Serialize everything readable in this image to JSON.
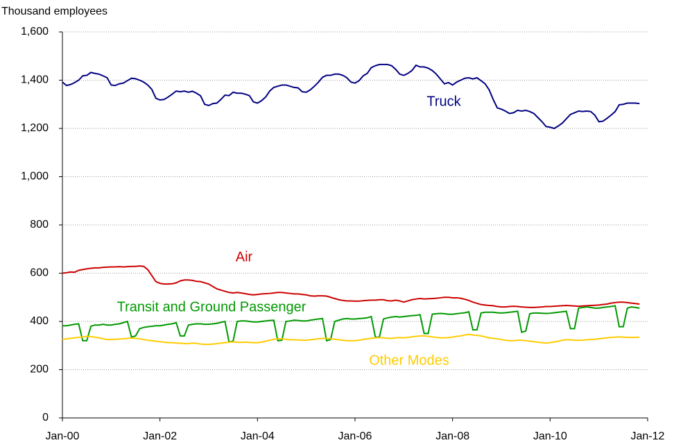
{
  "chart_data": {
    "type": "line",
    "y_axis_label": "Thousand employees",
    "x": [
      "2000-01",
      "2000-02",
      "2000-03",
      "2000-04",
      "2000-05",
      "2000-06",
      "2000-07",
      "2000-08",
      "2000-09",
      "2000-10",
      "2000-11",
      "2000-12",
      "2001-01",
      "2001-02",
      "2001-03",
      "2001-04",
      "2001-05",
      "2001-06",
      "2001-07",
      "2001-08",
      "2001-09",
      "2001-10",
      "2001-11",
      "2001-12",
      "2002-01",
      "2002-02",
      "2002-03",
      "2002-04",
      "2002-05",
      "2002-06",
      "2002-07",
      "2002-08",
      "2002-09",
      "2002-10",
      "2002-11",
      "2002-12",
      "2003-01",
      "2003-02",
      "2003-03",
      "2003-04",
      "2003-05",
      "2003-06",
      "2003-07",
      "2003-08",
      "2003-09",
      "2003-10",
      "2003-11",
      "2003-12",
      "2004-01",
      "2004-02",
      "2004-03",
      "2004-04",
      "2004-05",
      "2004-06",
      "2004-07",
      "2004-08",
      "2004-09",
      "2004-10",
      "2004-11",
      "2004-12",
      "2005-01",
      "2005-02",
      "2005-03",
      "2005-04",
      "2005-05",
      "2005-06",
      "2005-07",
      "2005-08",
      "2005-09",
      "2005-10",
      "2005-11",
      "2005-12",
      "2006-01",
      "2006-02",
      "2006-03",
      "2006-04",
      "2006-05",
      "2006-06",
      "2006-07",
      "2006-08",
      "2006-09",
      "2006-10",
      "2006-11",
      "2006-12",
      "2007-01",
      "2007-02",
      "2007-03",
      "2007-04",
      "2007-05",
      "2007-06",
      "2007-07",
      "2007-08",
      "2007-09",
      "2007-10",
      "2007-11",
      "2007-12",
      "2008-01",
      "2008-02",
      "2008-03",
      "2008-04",
      "2008-05",
      "2008-06",
      "2008-07",
      "2008-08",
      "2008-09",
      "2008-10",
      "2008-11",
      "2008-12",
      "2009-01",
      "2009-02",
      "2009-03",
      "2009-04",
      "2009-05",
      "2009-06",
      "2009-07",
      "2009-08",
      "2009-09",
      "2009-10",
      "2009-11",
      "2009-12",
      "2010-01",
      "2010-02",
      "2010-03",
      "2010-04",
      "2010-05",
      "2010-06",
      "2010-07",
      "2010-08",
      "2010-09",
      "2010-10",
      "2010-11",
      "2010-12",
      "2011-01",
      "2011-02",
      "2011-03",
      "2011-04",
      "2011-05",
      "2011-06",
      "2011-07",
      "2011-08",
      "2011-09",
      "2011-10",
      "2011-11"
    ],
    "series": [
      {
        "name": "Truck",
        "color": "#000080",
        "values": [
          1392,
          1378,
          1382,
          1390,
          1400,
          1418,
          1420,
          1432,
          1428,
          1425,
          1418,
          1410,
          1380,
          1378,
          1385,
          1388,
          1398,
          1408,
          1406,
          1400,
          1392,
          1380,
          1362,
          1325,
          1318,
          1320,
          1330,
          1342,
          1355,
          1352,
          1355,
          1350,
          1354,
          1346,
          1335,
          1300,
          1295,
          1303,
          1305,
          1320,
          1338,
          1336,
          1350,
          1346,
          1346,
          1342,
          1336,
          1310,
          1305,
          1315,
          1330,
          1355,
          1370,
          1375,
          1380,
          1380,
          1375,
          1370,
          1368,
          1352,
          1350,
          1360,
          1375,
          1392,
          1412,
          1420,
          1420,
          1425,
          1425,
          1420,
          1410,
          1392,
          1388,
          1398,
          1418,
          1428,
          1452,
          1460,
          1465,
          1465,
          1465,
          1460,
          1445,
          1425,
          1420,
          1428,
          1440,
          1462,
          1455,
          1455,
          1450,
          1440,
          1425,
          1405,
          1385,
          1390,
          1380,
          1392,
          1400,
          1408,
          1410,
          1405,
          1410,
          1398,
          1385,
          1360,
          1320,
          1285,
          1280,
          1272,
          1262,
          1265,
          1275,
          1272,
          1275,
          1270,
          1262,
          1245,
          1228,
          1208,
          1205,
          1200,
          1210,
          1222,
          1240,
          1258,
          1265,
          1272,
          1270,
          1272,
          1270,
          1255,
          1228,
          1230,
          1242,
          1255,
          1270,
          1298,
          1300,
          1305,
          1305,
          1305,
          1303
        ]
      },
      {
        "name": "Air",
        "color": "#cc0000",
        "values": [
          600,
          602,
          605,
          604,
          612,
          615,
          618,
          620,
          622,
          622,
          624,
          625,
          626,
          626,
          627,
          626,
          627,
          628,
          628,
          630,
          628,
          615,
          590,
          565,
          558,
          555,
          555,
          556,
          560,
          568,
          572,
          572,
          570,
          566,
          565,
          560,
          555,
          545,
          535,
          530,
          525,
          520,
          518,
          520,
          518,
          515,
          512,
          510,
          512,
          514,
          515,
          516,
          518,
          520,
          520,
          518,
          516,
          514,
          514,
          512,
          510,
          506,
          505,
          506,
          506,
          505,
          500,
          495,
          490,
          487,
          485,
          485,
          484,
          484,
          486,
          487,
          488,
          488,
          490,
          490,
          486,
          485,
          488,
          485,
          480,
          485,
          490,
          493,
          495,
          493,
          494,
          495,
          496,
          498,
          500,
          500,
          498,
          498,
          496,
          492,
          487,
          480,
          475,
          470,
          468,
          466,
          465,
          462,
          460,
          460,
          462,
          463,
          462,
          460,
          459,
          458,
          458,
          459,
          460,
          462,
          462,
          463,
          464,
          465,
          466,
          465,
          464,
          463,
          464,
          465,
          466,
          467,
          468,
          470,
          472,
          476,
          478,
          480,
          480,
          478,
          476,
          474,
          472
        ]
      },
      {
        "name": "Transit and Ground Passenger",
        "color": "#009900",
        "values": [
          382,
          382,
          385,
          388,
          390,
          320,
          320,
          380,
          385,
          385,
          388,
          385,
          385,
          388,
          390,
          395,
          400,
          335,
          340,
          370,
          375,
          378,
          380,
          382,
          382,
          385,
          388,
          390,
          395,
          340,
          340,
          385,
          388,
          390,
          390,
          388,
          388,
          390,
          392,
          396,
          400,
          315,
          318,
          400,
          402,
          402,
          400,
          398,
          398,
          400,
          402,
          404,
          405,
          320,
          322,
          400,
          402,
          405,
          404,
          402,
          402,
          405,
          408,
          410,
          412,
          320,
          325,
          400,
          405,
          410,
          412,
          410,
          410,
          412,
          413,
          415,
          420,
          335,
          335,
          410,
          415,
          418,
          420,
          418,
          420,
          422,
          424,
          425,
          428,
          350,
          350,
          430,
          432,
          433,
          432,
          430,
          430,
          432,
          434,
          436,
          440,
          365,
          365,
          435,
          438,
          438,
          438,
          436,
          435,
          436,
          438,
          440,
          442,
          355,
          360,
          432,
          435,
          435,
          434,
          433,
          434,
          436,
          438,
          440,
          442,
          370,
          370,
          455,
          458,
          460,
          458,
          455,
          455,
          458,
          460,
          462,
          465,
          378,
          378,
          455,
          460,
          458,
          455
        ]
      },
      {
        "name": "Other Modes",
        "color": "#ffcc00",
        "values": [
          325,
          328,
          330,
          332,
          334,
          336,
          338,
          337,
          335,
          332,
          328,
          325,
          325,
          326,
          327,
          328,
          330,
          331,
          330,
          328,
          325,
          322,
          320,
          318,
          316,
          314,
          312,
          312,
          310,
          310,
          308,
          308,
          310,
          309,
          306,
          305,
          305,
          306,
          308,
          310,
          312,
          314,
          315,
          314,
          313,
          314,
          313,
          312,
          312,
          314,
          318,
          322,
          326,
          328,
          328,
          326,
          324,
          324,
          323,
          322,
          322,
          324,
          326,
          328,
          330,
          330,
          328,
          326,
          324,
          322,
          320,
          320,
          320,
          322,
          325,
          328,
          330,
          332,
          333,
          332,
          330,
          330,
          332,
          333,
          332,
          334,
          336,
          338,
          340,
          340,
          338,
          336,
          334,
          332,
          332,
          333,
          335,
          338,
          340,
          344,
          346,
          344,
          342,
          340,
          336,
          332,
          330,
          328,
          325,
          322,
          320,
          320,
          322,
          322,
          320,
          318,
          316,
          314,
          312,
          310,
          312,
          315,
          318,
          322,
          324,
          324,
          322,
          322,
          322,
          324,
          325,
          326,
          328,
          330,
          332,
          334,
          335,
          336,
          335,
          334,
          334,
          334,
          335
        ]
      }
    ],
    "xlim": [
      "2000-01",
      "2012-01"
    ],
    "xticks": [
      {
        "value": "2000-01",
        "label": "Jan-00"
      },
      {
        "value": "2002-01",
        "label": "Jan-02"
      },
      {
        "value": "2004-01",
        "label": "Jan-04"
      },
      {
        "value": "2006-01",
        "label": "Jan-06"
      },
      {
        "value": "2008-01",
        "label": "Jan-08"
      },
      {
        "value": "2010-01",
        "label": "Jan-10"
      },
      {
        "value": "2012-01",
        "label": "Jan-12"
      }
    ],
    "ylim": [
      0,
      1600
    ],
    "yticks": [
      0,
      200,
      400,
      600,
      800,
      {
        "value": 1000,
        "label": "1,000"
      },
      {
        "value": 1200,
        "label": "1,200"
      },
      {
        "value": 1400,
        "label": "1,400"
      },
      {
        "value": 1600,
        "label": "1,600"
      }
    ],
    "grid": true
  }
}
